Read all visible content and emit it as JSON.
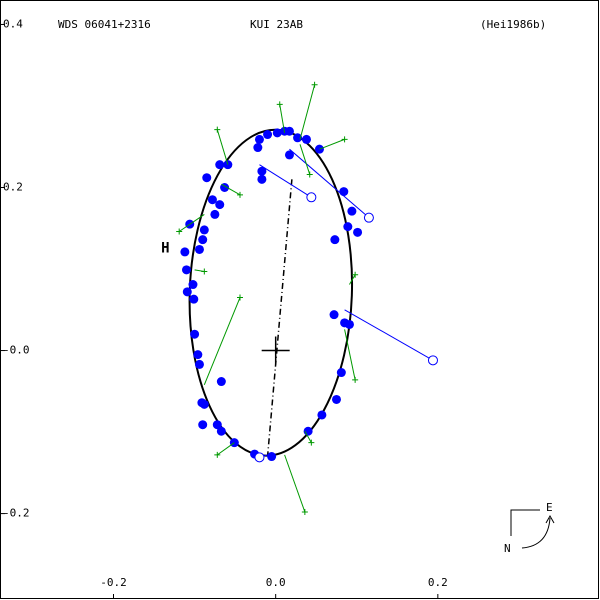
{
  "chart_data": {
    "type": "orbit",
    "title": "WDS 06041+2316",
    "subtitle": "KUI  23AB",
    "reference": "(Hei1986b)",
    "xlim": [
      -0.34,
      0.4
    ],
    "ylim": [
      -0.306,
      0.43
    ],
    "xticks": [
      -0.2,
      {
        "value": 0,
        "label": "0.0"
      },
      0.2
    ],
    "yticks": [
      0.4,
      0.2,
      {
        "value": 0,
        "label": "-0.0"
      },
      -0.2
    ],
    "orbit": {
      "cx": -0.006,
      "cy": 0.071,
      "rx": 0.1,
      "ry": 0.2,
      "angle": 2,
      "color": "#000000"
    },
    "node_line": {
      "x": [
        0.02,
        -0.01
      ],
      "y": [
        0.21,
        -0.13
      ]
    },
    "series": [
      {
        "name": "Observations",
        "color": "#0000ff",
        "x": [
          -0.085,
          -0.069,
          -0.059,
          -0.078,
          -0.063,
          -0.069,
          -0.075,
          -0.088,
          -0.09,
          -0.106,
          -0.094,
          -0.112,
          -0.11,
          -0.102,
          -0.109,
          -0.101,
          -0.1,
          -0.096,
          -0.094,
          -0.067,
          -0.091,
          -0.088,
          -0.09,
          -0.072,
          -0.067,
          -0.051,
          -0.026,
          -0.005,
          0.04,
          0.057,
          0.075,
          0.081,
          0.091,
          0.085,
          0.072,
          0.101,
          0.089,
          0.094,
          0.073,
          0.084,
          0.054,
          0.038,
          0.027,
          0.017,
          0.011,
          0.002,
          -0.01,
          -0.02,
          -0.022,
          -0.017,
          -0.017,
          0.017
        ],
        "y": [
          0.212,
          0.228,
          0.228,
          0.185,
          0.2,
          0.179,
          0.167,
          0.148,
          0.136,
          0.155,
          0.124,
          0.121,
          0.099,
          0.081,
          0.072,
          0.063,
          0.02,
          -0.005,
          -0.017,
          -0.038,
          -0.064,
          -0.066,
          -0.091,
          -0.091,
          -0.099,
          -0.113,
          -0.127,
          -0.13,
          -0.099,
          -0.079,
          -0.06,
          -0.027,
          0.032,
          0.034,
          0.044,
          0.145,
          0.152,
          0.171,
          0.136,
          0.195,
          0.247,
          0.259,
          0.261,
          0.269,
          0.269,
          0.267,
          0.265,
          0.259,
          0.249,
          0.22,
          0.21,
          0.24
        ]
      },
      {
        "name": "Rejected",
        "color": "#0000ff",
        "x": [
          0.044,
          0.115,
          0.194,
          -0.02
        ],
        "y": [
          0.188,
          0.163,
          -0.012,
          -0.131
        ],
        "x_end": [
          -0.02,
          0.017,
          0.085,
          -0.01
        ],
        "y_end": [
          0.228,
          0.247,
          0.05,
          -0.128
        ]
      },
      {
        "name": "Micrometer",
        "color": "#009900",
        "x": [
          0.048,
          0.005,
          -0.072,
          -0.044,
          0.036,
          0.098,
          0.085,
          -0.088,
          -0.119,
          -0.044,
          0.042,
          -0.072,
          0.044,
          0.098
        ],
        "y": [
          0.326,
          0.302,
          0.271,
          0.065,
          -0.198,
          -0.036,
          0.259,
          0.097,
          0.146,
          0.191,
          0.216,
          -0.128,
          -0.113,
          0.093
        ],
        "x_end": [
          0.03,
          0.011,
          -0.059,
          -0.088,
          0.011,
          0.085,
          0.054,
          -0.1,
          -0.088,
          -0.067,
          0.03,
          -0.051,
          0.036,
          0.091
        ],
        "y_end": [
          0.259,
          0.267,
          0.228,
          -0.042,
          -0.128,
          0.026,
          0.247,
          0.099,
          0.167,
          0.204,
          0.253,
          -0.113,
          -0.099,
          0.081
        ]
      }
    ],
    "h_marker": {
      "label": "H",
      "x": -0.136,
      "y": 0.125,
      "color": "#ff0000"
    },
    "compass": {
      "east": "E",
      "north": "N"
    }
  }
}
